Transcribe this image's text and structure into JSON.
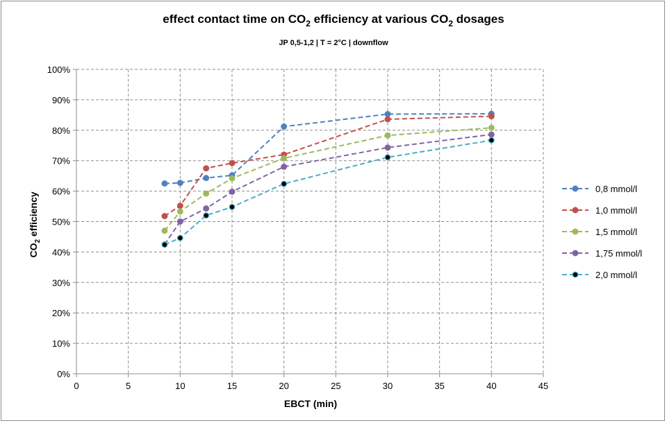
{
  "chart_data": {
    "type": "line",
    "title_main_1": "effect contact time on CO",
    "title_sub_1": "2",
    "title_main_2": " efficiency at various CO",
    "title_sub_2": "2",
    "title_main_3": " dosages",
    "subtitle": "JP 0,5-1,2 | T = 2°C | downflow",
    "xlabel": "EBCT (min)",
    "ylabel_main": "CO",
    "ylabel_sub": "2",
    "ylabel_rest": " efficiency",
    "xlim": [
      0,
      45
    ],
    "ylim": [
      0,
      100
    ],
    "x_ticks": [
      "0",
      "5",
      "10",
      "15",
      "20",
      "25",
      "30",
      "35",
      "40",
      "45"
    ],
    "y_ticks": [
      "0%",
      "10%",
      "20%",
      "30%",
      "40%",
      "50%",
      "60%",
      "70%",
      "80%",
      "90%",
      "100%"
    ],
    "grid": true,
    "grid_style": "dashed",
    "legend_position": "right",
    "line_style": "dashed",
    "x": [
      8.5,
      10,
      12.5,
      15,
      20,
      30,
      40
    ],
    "series": [
      {
        "name": "0,8 mmol/l",
        "color": "#4f81bd",
        "marker_fill": "#4f81bd",
        "values": [
          62.5,
          62.7,
          64.3,
          65.2,
          81.2,
          85.3,
          85.4
        ]
      },
      {
        "name": "1,0 mmol/l",
        "color": "#c0504d",
        "marker_fill": "#c0504d",
        "values": [
          51.8,
          55.2,
          67.5,
          69.2,
          72.0,
          83.6,
          84.6
        ]
      },
      {
        "name": "1,5 mmol/l",
        "color": "#9bbb59",
        "marker_fill": "#9bbb59",
        "values": [
          47.0,
          53.3,
          59.2,
          64.2,
          70.8,
          78.3,
          80.8
        ]
      },
      {
        "name": "1,75 mmol/l",
        "color": "#8064a2",
        "marker_fill": "#8064a2",
        "values": [
          42.5,
          50.0,
          54.3,
          59.8,
          68.0,
          74.3,
          78.6
        ]
      },
      {
        "name": "2,0 mmol/l",
        "color": "#4bacc6",
        "marker_fill": "#000000",
        "values": [
          42.4,
          44.6,
          52.0,
          54.8,
          62.4,
          71.1,
          76.7
        ]
      }
    ]
  }
}
